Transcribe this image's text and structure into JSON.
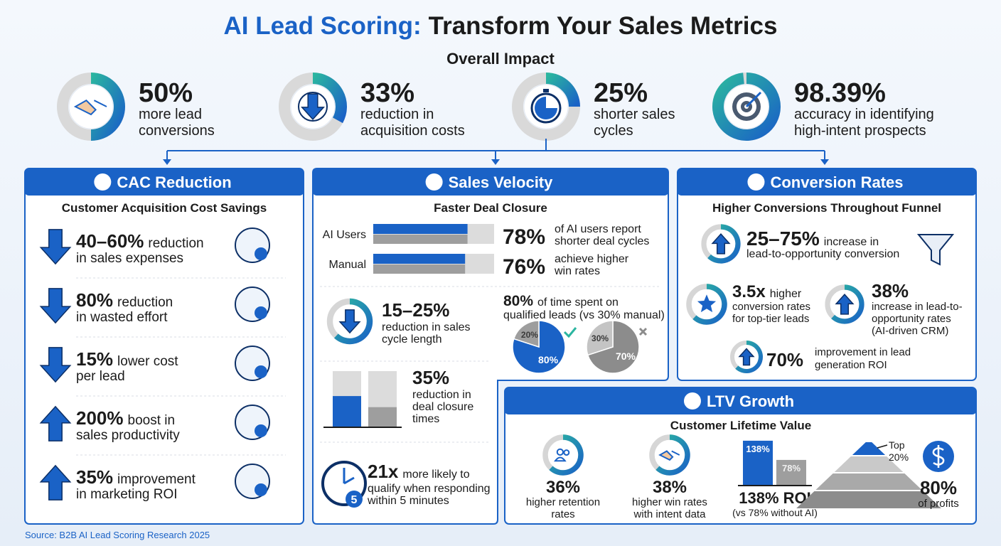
{
  "header": {
    "title_highlight": "AI Lead Scoring:",
    "title_rest": "Transform Your Sales Metrics",
    "subtitle": "Overall Impact"
  },
  "impact": [
    {
      "value": 50,
      "value_label": "50%",
      "text": [
        "more lead",
        "conversions"
      ]
    },
    {
      "value": 33,
      "value_label": "33%",
      "text": [
        "reduction in",
        "acquisition costs"
      ]
    },
    {
      "value": 25,
      "value_label": "25%",
      "text": [
        "shorter sales",
        "cycles"
      ]
    },
    {
      "value": 98.39,
      "value_label": "98.39%",
      "text": [
        "accuracy in identifying",
        "high-intent prospects"
      ]
    }
  ],
  "cac": {
    "title": "CAC Reduction",
    "subtitle": "Customer Acquisition Cost Savings",
    "items": [
      {
        "direction": "down",
        "value": "40–60%",
        "inline": "reduction",
        "text": "in sales expenses"
      },
      {
        "direction": "down",
        "value": "80%",
        "inline": "reduction",
        "text": "in wasted effort"
      },
      {
        "direction": "down",
        "value": "15%",
        "inline": "lower cost",
        "text": "per lead"
      },
      {
        "direction": "up",
        "value": "200%",
        "inline": "boost in",
        "text": "sales productivity"
      },
      {
        "direction": "up",
        "value": "35%",
        "inline": "improvement",
        "text": "in marketing ROI"
      }
    ]
  },
  "velocity": {
    "title": "Sales Velocity",
    "subtitle": "Faster Deal Closure",
    "color": "#1a62c6",
    "bars": [
      {
        "label": "AI Users",
        "value": 78,
        "value_label": "78%",
        "text": [
          "of AI users report",
          "shorter deal cycles"
        ]
      },
      {
        "label": "Manual",
        "value": 76,
        "value_label": "76%",
        "text": [
          "achieve higher",
          "win rates"
        ]
      }
    ],
    "cycle": {
      "value": "15–25%",
      "text": [
        "reduction in sales",
        "cycle length"
      ]
    },
    "time": {
      "value": "80%",
      "inline": "of time spent on",
      "text": "qualified leads (vs 30% manual)",
      "pies": [
        {
          "values": [
            80,
            20
          ],
          "value_labels": [
            "80%",
            "20%"
          ],
          "colors": [
            "#1a62c6",
            "#9e9e9e"
          ]
        },
        {
          "values": [
            70,
            30
          ],
          "value_labels": [
            "70%",
            "30%"
          ],
          "colors": [
            "#8c8c8c",
            "#c4c4c4"
          ]
        }
      ]
    },
    "closure": {
      "value": "35%",
      "text": [
        "reduction in",
        "deal closure",
        "times"
      ]
    },
    "response": {
      "value": "21x",
      "inline": "more likely to",
      "text": [
        "qualify when responding",
        "within 5 minutes"
      ],
      "badge": "5"
    }
  },
  "conversion": {
    "title": "Conversion Rates",
    "subtitle": "Higher Conversions Throughout Funnel",
    "items": [
      {
        "value": "25–75%",
        "inline": "increase in",
        "text": [
          "lead-to-opportunity conversion"
        ]
      },
      {
        "value": "3.5x",
        "inline": "higher",
        "text": [
          "conversion rates",
          "for top-tier leads"
        ]
      },
      {
        "value": "38%",
        "text": [
          "increase in lead-to-",
          "opportunity rates",
          "(AI-driven CRM)"
        ]
      },
      {
        "value": "70%",
        "text": [
          "improvement in lead",
          "generation ROI"
        ]
      }
    ]
  },
  "ltv": {
    "title": "LTV Growth",
    "subtitle": "Customer Lifetime Value",
    "retention": {
      "value": "36%",
      "text": [
        "higher retention",
        "rates"
      ]
    },
    "win": {
      "value": "38%",
      "text": [
        "higher win rates",
        "with intent data"
      ]
    },
    "roi": {
      "bars": [
        {
          "value": 138,
          "value_label": "138%",
          "color": "#1a62c6"
        },
        {
          "value": 78,
          "value_label": "78%",
          "color": "#9e9e9e"
        }
      ],
      "label": "138% ROI",
      "note": "(vs 78% without AI)"
    },
    "profits": {
      "top": "Top",
      "share": "20%",
      "value": "80%",
      "text": "of profits"
    }
  },
  "source": "Source: B2B AI Lead Scoring Research 2025"
}
